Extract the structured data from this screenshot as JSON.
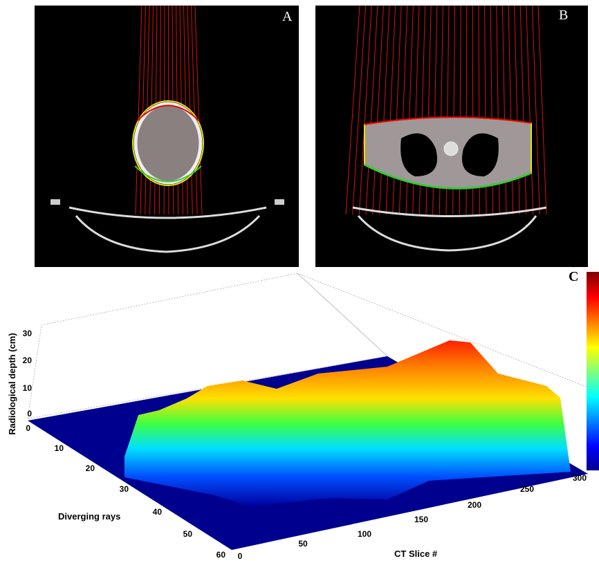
{
  "panels": {
    "a": {
      "label": "A"
    },
    "b": {
      "label": "B"
    },
    "c": {
      "label": "C"
    }
  },
  "plot": {
    "z_label": "Radiological depth (cm)",
    "y_label": "Diverging rays",
    "x_label": "CT Slice #",
    "z_ticks": [
      "0",
      "10",
      "20",
      "30"
    ],
    "y_ticks": [
      "0",
      "10",
      "20",
      "30",
      "40",
      "50",
      "60"
    ],
    "x_ticks": [
      "0",
      "50",
      "100",
      "150",
      "200",
      "250",
      "300"
    ]
  }
}
